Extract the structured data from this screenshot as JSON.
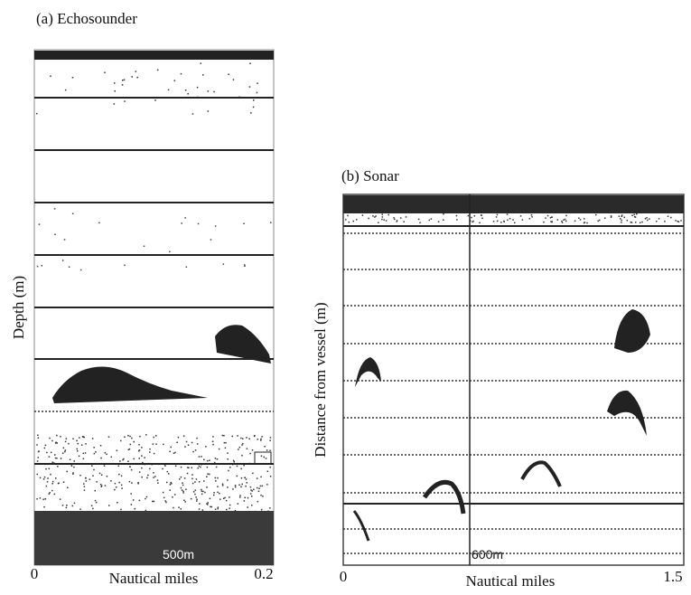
{
  "panels": [
    {
      "title": "(a) Echosounder",
      "y_label": "Depth (m)",
      "x_label": "Nautical miles",
      "x_tick_labels": [
        "0",
        "0.2"
      ],
      "scale_label": "500m"
    },
    {
      "title": "(b) Sonar",
      "y_label": "Distance from vessel (m)",
      "x_label": "Nautical miles",
      "x_tick_labels": [
        "0",
        "1.5"
      ],
      "scale_label": "600m"
    }
  ]
}
